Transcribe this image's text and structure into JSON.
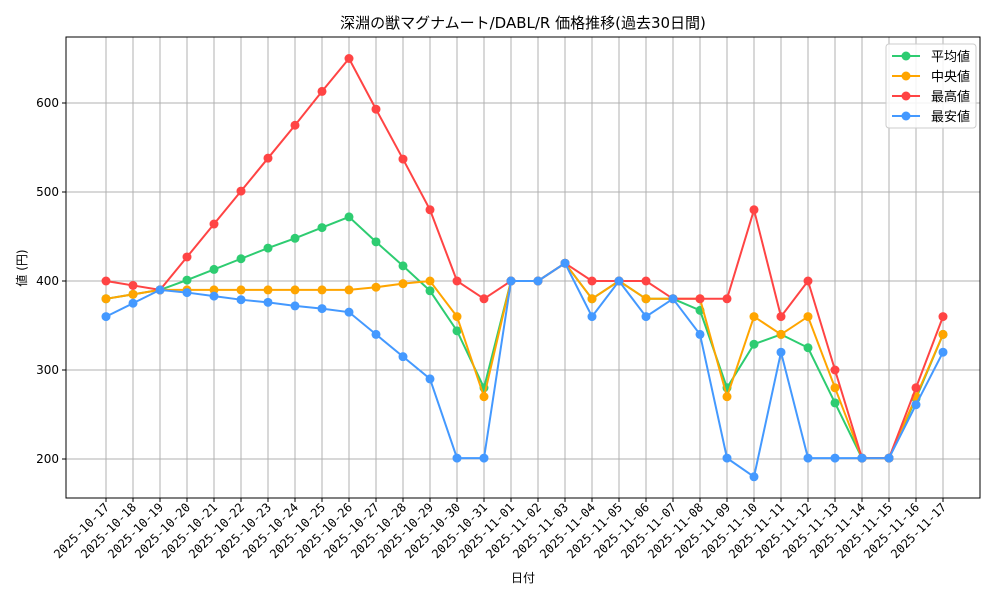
{
  "chart_data": {
    "type": "line",
    "title": "深淵の獣マグナムート/DABL/R 価格推移(過去30日間)",
    "xlabel": "日付",
    "ylabel": "値 (円)",
    "ylim": [
      155,
      675
    ],
    "yticks": [
      200,
      300,
      400,
      500,
      600
    ],
    "grid": true,
    "legend_position": "top-right",
    "x": [
      "2025-10-17",
      "2025-10-18",
      "2025-10-19",
      "2025-10-20",
      "2025-10-21",
      "2025-10-22",
      "2025-10-23",
      "2025-10-24",
      "2025-10-25",
      "2025-10-26",
      "2025-10-27",
      "2025-10-28",
      "2025-10-29",
      "2025-10-30",
      "2025-10-31",
      "2025-11-01",
      "2025-11-02",
      "2025-11-03",
      "2025-11-04",
      "2025-11-05",
      "2025-11-06",
      "2025-11-07",
      "2025-11-08",
      "2025-11-09",
      "2025-11-10",
      "2025-11-11",
      "2025-11-12",
      "2025-11-13",
      "2025-11-14",
      "2025-11-15",
      "2025-11-16",
      "2025-11-17"
    ],
    "series": [
      {
        "name": "平均値",
        "color": "#2ecc71",
        "values": [
          380,
          385,
          390,
          401,
          413,
          425,
          437,
          448,
          460,
          472,
          444,
          417,
          389,
          344,
          280,
          400,
          400,
          420,
          380,
          400,
          380,
          380,
          367,
          280,
          329,
          340,
          325,
          263,
          201,
          201,
          268,
          340
        ]
      },
      {
        "name": "中央値",
        "color": "#ffa500",
        "values": [
          380,
          385,
          390,
          390,
          390,
          390,
          390,
          390,
          390,
          390,
          393,
          397,
          400,
          360,
          270,
          400,
          400,
          420,
          380,
          400,
          380,
          380,
          380,
          270,
          360,
          340,
          360,
          280,
          201,
          201,
          270,
          340
        ]
      },
      {
        "name": "最高値",
        "color": "#ff4444",
        "values": [
          400,
          395,
          390,
          427,
          464,
          501,
          538,
          575,
          613,
          650,
          593,
          537,
          480,
          400,
          380,
          400,
          400,
          420,
          400,
          400,
          400,
          380,
          380,
          380,
          480,
          360,
          400,
          300,
          201,
          201,
          280,
          360
        ]
      },
      {
        "name": "最安値",
        "color": "#4499ff",
        "values": [
          360,
          375,
          390,
          387,
          383,
          379,
          376,
          372,
          369,
          365,
          340,
          315,
          290,
          201,
          201,
          400,
          400,
          420,
          360,
          400,
          360,
          380,
          340,
          201,
          180,
          320,
          201,
          201,
          201,
          201,
          261,
          320
        ]
      }
    ]
  }
}
